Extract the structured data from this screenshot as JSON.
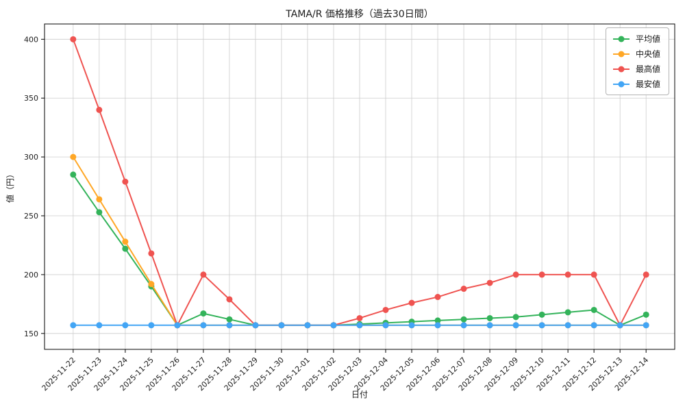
{
  "figure": {
    "background": "#ffffff"
  },
  "chart_data": {
    "type": "line",
    "title": "TAMA/R 価格推移（過去30日間）",
    "xlabel": "日付",
    "ylabel": "値（円）",
    "ylim": [
      136.5,
      413
    ],
    "yticks": [
      150,
      200,
      250,
      300,
      350,
      400
    ],
    "grid": true,
    "legend_position": "upper right",
    "categories": [
      "2025-11-22",
      "2025-11-23",
      "2025-11-24",
      "2025-11-25",
      "2025-11-26",
      "2025-11-27",
      "2025-11-28",
      "2025-11-29",
      "2025-11-30",
      "2025-12-01",
      "2025-12-02",
      "2025-12-03",
      "2025-12-04",
      "2025-12-05",
      "2025-12-06",
      "2025-12-07",
      "2025-12-08",
      "2025-12-09",
      "2025-12-10",
      "2025-12-11",
      "2025-12-12",
      "2025-12-13",
      "2025-12-14"
    ],
    "series": [
      {
        "name": "平均値",
        "key": "average",
        "color": "#33b35a",
        "values": [
          285,
          253,
          222,
          190,
          157,
          167,
          162,
          157,
          157,
          157,
          157,
          158,
          159,
          160,
          161,
          162,
          163,
          164,
          166,
          168,
          170,
          157,
          166
        ]
      },
      {
        "name": "中央値",
        "key": "median",
        "color": "#ffa726",
        "values": [
          300,
          264,
          228,
          192,
          157,
          157,
          157,
          157,
          157,
          157,
          157,
          157,
          157,
          157,
          157,
          157,
          157,
          157,
          157,
          157,
          157,
          157,
          157
        ]
      },
      {
        "name": "最高値",
        "key": "max",
        "color": "#ef5350",
        "values": [
          400,
          340,
          279,
          218,
          157,
          200,
          179,
          157,
          157,
          157,
          157,
          163,
          170,
          176,
          181,
          188,
          193,
          200,
          200,
          200,
          200,
          157,
          200
        ]
      },
      {
        "name": "最安値",
        "key": "min",
        "color": "#42a5f5",
        "values": [
          157,
          157,
          157,
          157,
          157,
          157,
          157,
          157,
          157,
          157,
          157,
          157,
          157,
          157,
          157,
          157,
          157,
          157,
          157,
          157,
          157,
          157,
          157
        ]
      }
    ]
  }
}
